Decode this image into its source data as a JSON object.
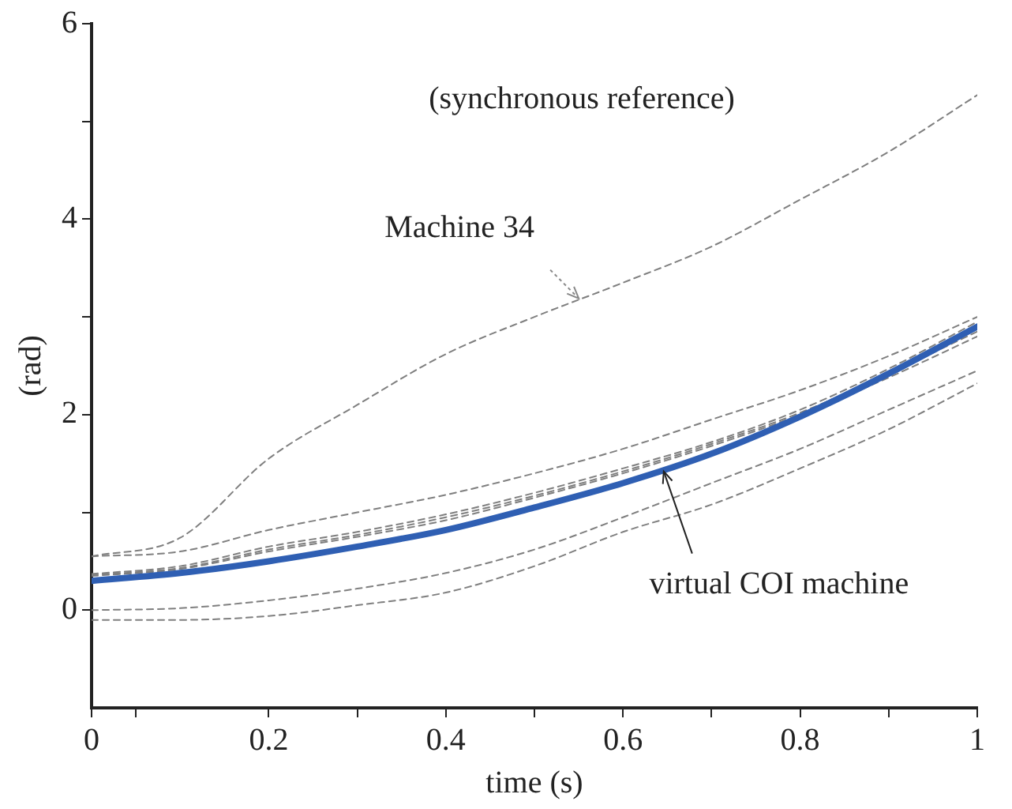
{
  "chart_data": {
    "type": "line",
    "xlabel": "time (s)",
    "ylabel": "(rad)",
    "x": [
      0,
      0.1,
      0.2,
      0.3,
      0.4,
      0.5,
      0.6,
      0.7,
      0.8,
      0.9,
      1
    ],
    "series": [
      {
        "color": "#7f7f7f",
        "line_style": "dashed",
        "values": [
          0.55,
          0.74,
          1.55,
          2.1,
          2.62,
          3.0,
          3.35,
          3.72,
          4.2,
          4.69,
          5.27
        ]
      },
      {
        "color": "#7f7f7f",
        "line_style": "dashed",
        "values": [
          0.55,
          0.6,
          0.82,
          1.0,
          1.18,
          1.4,
          1.65,
          1.95,
          2.25,
          2.6,
          3.0
        ]
      },
      {
        "color": "#7f7f7f",
        "line_style": "dashed",
        "values": [
          0.37,
          0.45,
          0.65,
          0.8,
          0.98,
          1.2,
          1.45,
          1.72,
          2.05,
          2.47,
          2.95
        ]
      },
      {
        "color": "#7f7f7f",
        "line_style": "dashed",
        "values": [
          0.36,
          0.43,
          0.62,
          0.77,
          0.95,
          1.17,
          1.42,
          1.7,
          2.02,
          2.42,
          2.85
        ]
      },
      {
        "color": "#7f7f7f",
        "line_style": "dashed",
        "values": [
          0.35,
          0.42,
          0.6,
          0.75,
          0.92,
          1.15,
          1.4,
          1.68,
          2.0,
          2.38,
          2.8
        ]
      },
      {
        "color": "#7f7f7f",
        "line_style": "dashed",
        "values": [
          0.0,
          0.02,
          0.1,
          0.22,
          0.38,
          0.62,
          0.95,
          1.3,
          1.65,
          2.05,
          2.45
        ]
      },
      {
        "color": "#7f7f7f",
        "line_style": "dashed",
        "values": [
          -0.1,
          -0.1,
          -0.06,
          0.05,
          0.18,
          0.45,
          0.8,
          1.08,
          1.45,
          1.85,
          2.32
        ]
      },
      {
        "color": "#2f5fb3",
        "line_style": "solid",
        "values": [
          0.3,
          0.38,
          0.5,
          0.65,
          0.82,
          1.05,
          1.3,
          1.6,
          1.98,
          2.42,
          2.9
        ]
      }
    ],
    "xlim": [
      0,
      1
    ],
    "xticks": [
      0,
      {
        "value": 0.05,
        "label": null
      },
      0.2,
      {
        "value": 0.3,
        "label": null
      },
      0.4,
      {
        "value": 0.5,
        "label": null
      },
      0.6,
      {
        "value": 0.7,
        "label": null
      },
      0.8,
      {
        "value": 0.9,
        "label": null
      },
      1
    ],
    "ylim": [
      -1,
      6
    ],
    "yticks": [
      0,
      {
        "value": 1,
        "label": null
      },
      2,
      {
        "value": 3,
        "label": null
      },
      4,
      {
        "value": 5,
        "label": null
      },
      6
    ],
    "grid": false,
    "legend": false,
    "marker": "none",
    "annotations": [
      "(synchronous reference)",
      {
        "text": "Machine 34",
        "x": 0.55,
        "y": 3.19
      },
      {
        "text": "virtual COI machine",
        "x": 0.646,
        "y": 1.42
      }
    ]
  }
}
